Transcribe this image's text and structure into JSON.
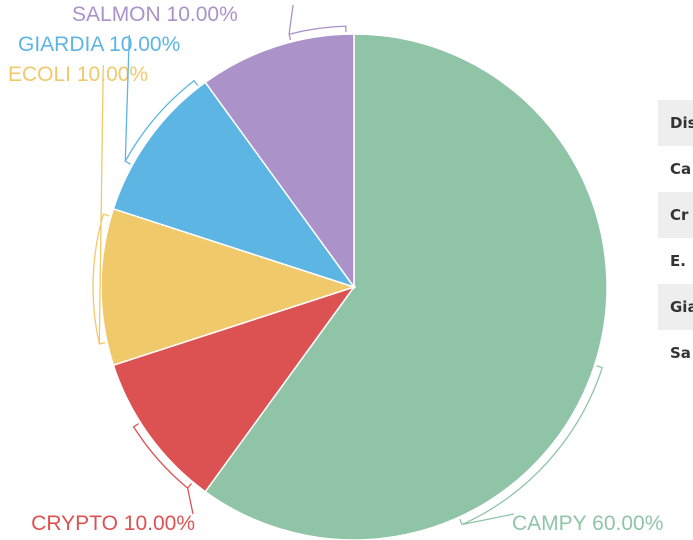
{
  "chart_data": {
    "type": "pie",
    "categories": [
      "CAMPY",
      "CRYPTO",
      "ECOLI",
      "GIARDIA",
      "SALMON"
    ],
    "values": [
      60,
      10,
      10,
      10,
      10
    ],
    "value_labels": [
      "60.00%",
      "10.00%",
      "10.00%",
      "10.00%",
      "10.00%"
    ],
    "colors": [
      "#8fc4a7",
      "#dc5252",
      "#f0c96a",
      "#5db5e4",
      "#ab92c9"
    ]
  },
  "table": {
    "rows": [
      "Dis",
      "Ca",
      "Cr",
      "E.",
      "Gia",
      "Sa"
    ]
  }
}
